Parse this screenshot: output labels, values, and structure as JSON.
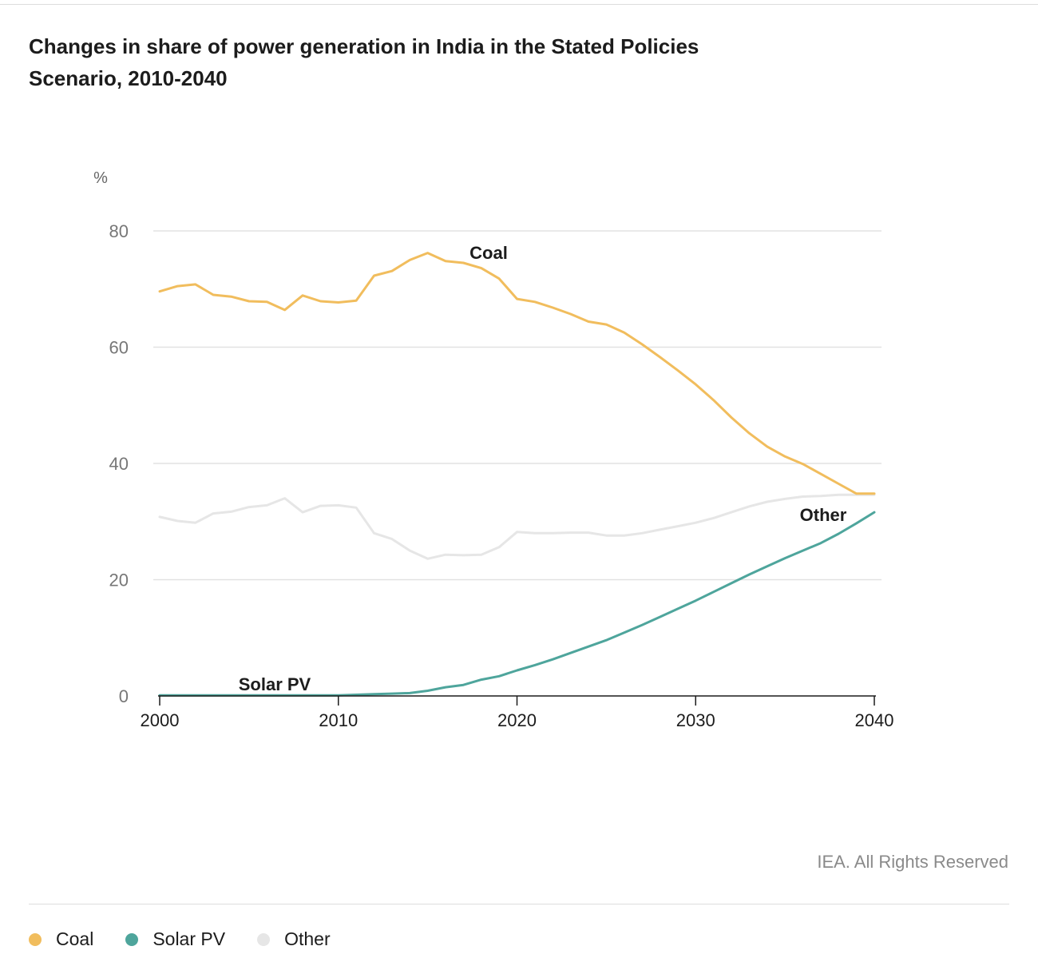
{
  "title": "Changes in share of power generation in India in the Stated Policies Scenario, 2010-2040",
  "credit": "IEA. All Rights Reserved",
  "colors": {
    "coal": "#f1bd5d",
    "solar": "#4ea59c",
    "other": "#e6e6e6",
    "grid": "#e2e2e2",
    "axis": "#1c1c1c"
  },
  "chart_data": {
    "type": "line",
    "title": "Changes in share of power generation in India in the Stated Policies Scenario, 2010-2040",
    "ylabel": "%",
    "xlabel": "",
    "xlim": [
      2000,
      2040
    ],
    "ylim": [
      0,
      80
    ],
    "x_ticks": [
      2000,
      2010,
      2020,
      2030,
      2040
    ],
    "y_ticks": [
      0,
      20,
      40,
      60,
      80
    ],
    "grid": true,
    "legend_position": "bottom",
    "x": [
      2000,
      2001,
      2002,
      2003,
      2004,
      2005,
      2006,
      2007,
      2008,
      2009,
      2010,
      2011,
      2012,
      2013,
      2014,
      2015,
      2016,
      2017,
      2018,
      2019,
      2020,
      2021,
      2022,
      2023,
      2024,
      2025,
      2026,
      2027,
      2028,
      2029,
      2030,
      2031,
      2032,
      2033,
      2034,
      2035,
      2036,
      2037,
      2038,
      2039,
      2040
    ],
    "series": [
      {
        "name": "Coal",
        "key": "coal",
        "label_text": "Coal",
        "values": [
          69.6,
          70.5,
          70.8,
          69.0,
          68.7,
          67.9,
          67.8,
          66.4,
          68.9,
          67.9,
          67.7,
          68.0,
          72.3,
          73.1,
          75.0,
          76.2,
          74.8,
          74.5,
          73.6,
          71.8,
          68.3,
          67.8,
          66.8,
          65.7,
          64.4,
          63.9,
          62.5,
          60.5,
          58.3,
          56.0,
          53.6,
          50.9,
          47.9,
          45.2,
          42.9,
          41.2,
          39.9,
          38.2,
          36.5,
          34.8,
          34.8
        ]
      },
      {
        "name": "Solar PV",
        "key": "solar",
        "label_text": "Solar PV",
        "values": [
          0.1,
          0.1,
          0.1,
          0.1,
          0.1,
          0.1,
          0.1,
          0.1,
          0.1,
          0.1,
          0.1,
          0.2,
          0.3,
          0.4,
          0.5,
          0.9,
          1.5,
          1.9,
          2.8,
          3.4,
          4.4,
          5.3,
          6.3,
          7.4,
          8.5,
          9.6,
          10.9,
          12.2,
          13.6,
          15.0,
          16.4,
          17.9,
          19.4,
          20.9,
          22.3,
          23.7,
          25.0,
          26.3,
          27.9,
          29.7,
          31.6
        ]
      },
      {
        "name": "Other",
        "key": "other",
        "label_text": "Other",
        "values": [
          30.8,
          30.1,
          29.8,
          31.4,
          31.7,
          32.5,
          32.8,
          34.0,
          31.6,
          32.7,
          32.8,
          32.4,
          28.0,
          27.0,
          25.0,
          23.6,
          24.3,
          24.2,
          24.3,
          25.6,
          28.2,
          28.0,
          28.0,
          28.1,
          28.1,
          27.6,
          27.6,
          28.0,
          28.6,
          29.2,
          29.8,
          30.6,
          31.6,
          32.6,
          33.4,
          33.9,
          34.3,
          34.4,
          34.6,
          34.6,
          34.6
        ]
      }
    ]
  },
  "legend": [
    {
      "label": "Coal",
      "color": "#f1bd5d"
    },
    {
      "label": "Solar PV",
      "color": "#4ea59c"
    },
    {
      "label": "Other",
      "color": "#e6e6e6"
    }
  ]
}
